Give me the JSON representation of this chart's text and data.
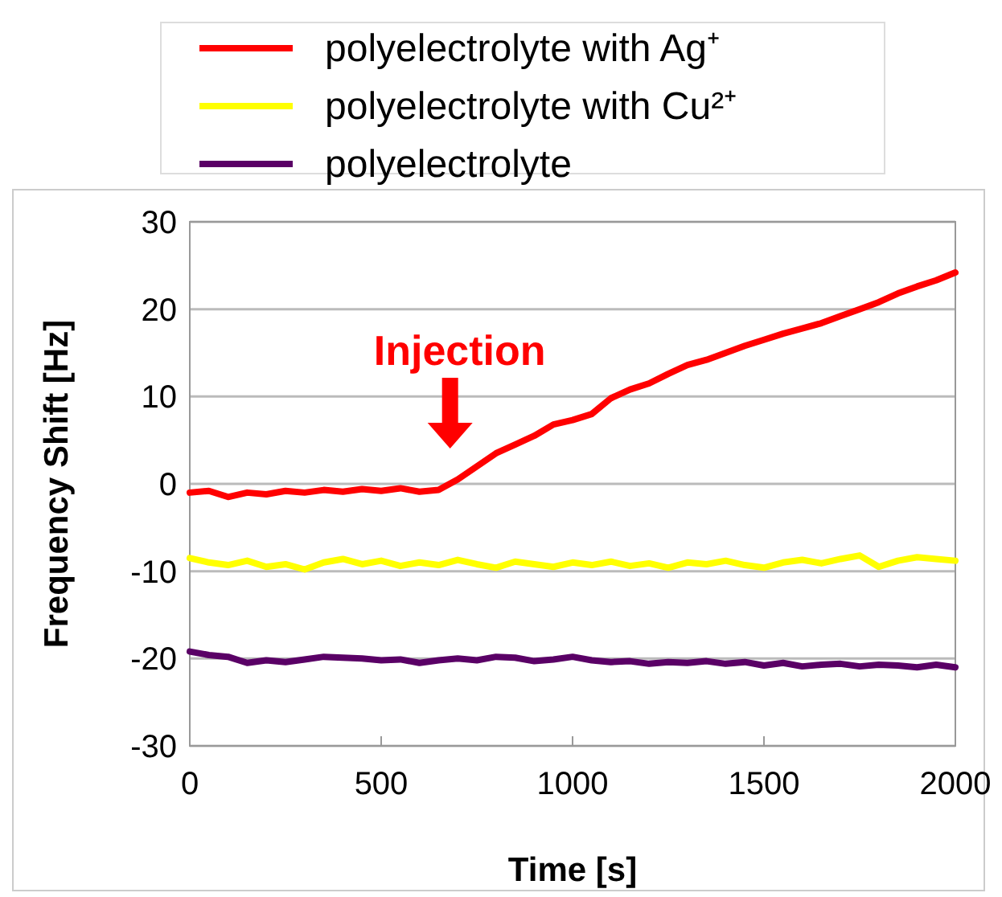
{
  "chart_data": {
    "type": "line",
    "xlabel": "Time [s]",
    "ylabel": "Frequency Shift [Hz]",
    "x": [
      0,
      50,
      100,
      150,
      200,
      250,
      300,
      350,
      400,
      450,
      500,
      550,
      600,
      650,
      700,
      750,
      800,
      850,
      900,
      950,
      1000,
      1050,
      1100,
      1150,
      1200,
      1250,
      1300,
      1350,
      1400,
      1450,
      1500,
      1550,
      1600,
      1650,
      1700,
      1750,
      1800,
      1850,
      1900,
      1950,
      2000
    ],
    "series": [
      {
        "name": "polyelectrolyte with Ag⁺",
        "color": "#ff0000",
        "values": [
          -1,
          -0.8,
          -1.5,
          -1,
          -1.2,
          -0.8,
          -1,
          -0.7,
          -0.9,
          -0.6,
          -0.8,
          -0.5,
          -0.9,
          -0.7,
          0.5,
          2,
          3.5,
          4.5,
          5.5,
          6.8,
          7.3,
          8,
          9.8,
          10.8,
          11.5,
          12.6,
          13.6,
          14.2,
          15,
          15.8,
          16.5,
          17.2,
          17.8,
          18.4,
          19.2,
          20,
          20.8,
          21.8,
          22.6,
          23.3,
          24.2
        ]
      },
      {
        "name": "polyelectrolyte with Cu²⁺",
        "color": "#ffff00",
        "values": [
          -8.5,
          -9,
          -9.3,
          -8.8,
          -9.5,
          -9.2,
          -9.8,
          -9,
          -8.6,
          -9.2,
          -8.8,
          -9.4,
          -9,
          -9.3,
          -8.7,
          -9.2,
          -9.6,
          -8.9,
          -9.2,
          -9.5,
          -9,
          -9.3,
          -8.9,
          -9.4,
          -9.1,
          -9.6,
          -9,
          -9.2,
          -8.8,
          -9.3,
          -9.6,
          -9,
          -8.7,
          -9.1,
          -8.6,
          -8.2,
          -9.5,
          -8.8,
          -8.4,
          -8.6,
          -8.8
        ]
      },
      {
        "name": "polyelectrolyte",
        "color": "#5a0066",
        "values": [
          -19.2,
          -19.6,
          -19.8,
          -20.5,
          -20.2,
          -20.4,
          -20.1,
          -19.8,
          -19.9,
          -20,
          -20.2,
          -20.1,
          -20.5,
          -20.2,
          -20,
          -20.2,
          -19.8,
          -19.9,
          -20.3,
          -20.1,
          -19.8,
          -20.2,
          -20.4,
          -20.3,
          -20.6,
          -20.4,
          -20.5,
          -20.3,
          -20.6,
          -20.4,
          -20.8,
          -20.5,
          -20.9,
          -20.7,
          -20.6,
          -20.9,
          -20.7,
          -20.8,
          -21,
          -20.7,
          -21
        ]
      }
    ],
    "xlim": [
      0,
      2000
    ],
    "xticks": [
      0,
      500,
      1000,
      1500,
      2000
    ],
    "ylim": [
      -30,
      30
    ],
    "yticks": [
      -30,
      -20,
      -10,
      0,
      10,
      20,
      30
    ],
    "grid": "y",
    "legend": "top",
    "line_style": "solid",
    "marker": "none",
    "annotations": [
      {
        "text": "Injection",
        "x": 680,
        "y": 0
      }
    ]
  }
}
